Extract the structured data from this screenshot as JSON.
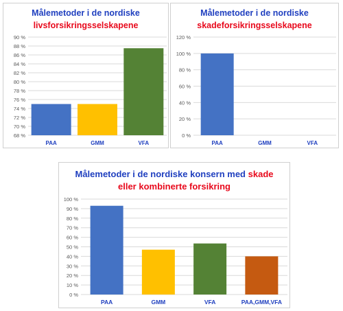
{
  "colors": {
    "blue": "#1f3fbf",
    "red": "#e8091c",
    "PAA": "#4472c4",
    "GMM": "#ffc000",
    "VFA": "#548235",
    "COMBO": "#c55a11",
    "grid": "#d9d9d9",
    "tick": "#595959"
  },
  "charts": {
    "life": {
      "title_line1": "Målemetoder i de nordiske",
      "title_line2": "livsforsikringsselskapene"
    },
    "nonlife": {
      "title_line1": "Målemetoder i de nordiske",
      "title_line2": "skadeforsikringsselskapene"
    },
    "group": {
      "title_line1_blue": "Målemetoder i de nordiske konsern med ",
      "title_line1_red": "skade",
      "title_line2": "eller kombinerte forsikring"
    }
  },
  "chart_data": [
    {
      "type": "bar",
      "title": "Målemetoder i de nordiske livsforsikringsselskapene",
      "categories": [
        "PAA",
        "GMM",
        "VFA"
      ],
      "values": [
        75,
        75,
        87.5
      ],
      "ylim": [
        68,
        90
      ],
      "yticks": [
        "68 %",
        "70 %",
        "72 %",
        "74 %",
        "76 %",
        "78 %",
        "80 %",
        "82 %",
        "84 %",
        "86 %",
        "88 %",
        "90 %"
      ],
      "grid": true
    },
    {
      "type": "bar",
      "title": "Målemetoder i de nordiske skadeforsikringsselskapene",
      "categories": [
        "PAA",
        "GMM",
        "VFA"
      ],
      "values": [
        100,
        0,
        0
      ],
      "ylim": [
        0,
        120
      ],
      "yticks": [
        "0 %",
        "20 %",
        "40 %",
        "60 %",
        "80 %",
        "100 %",
        "120 %"
      ],
      "grid": true
    },
    {
      "type": "bar",
      "title": "Målemetoder i de nordiske konsern med skade eller kombinerte forsikring",
      "categories": [
        "PAA",
        "GMM",
        "VFA",
        "PAA,GMM,VFA"
      ],
      "values": [
        93,
        47,
        53.5,
        40
      ],
      "ylim": [
        0,
        100
      ],
      "yticks": [
        "0 %",
        "10 %",
        "20 %",
        "30 %",
        "40 %",
        "50 %",
        "60 %",
        "70 %",
        "80 %",
        "90 %",
        "100 %"
      ],
      "grid": true
    }
  ]
}
